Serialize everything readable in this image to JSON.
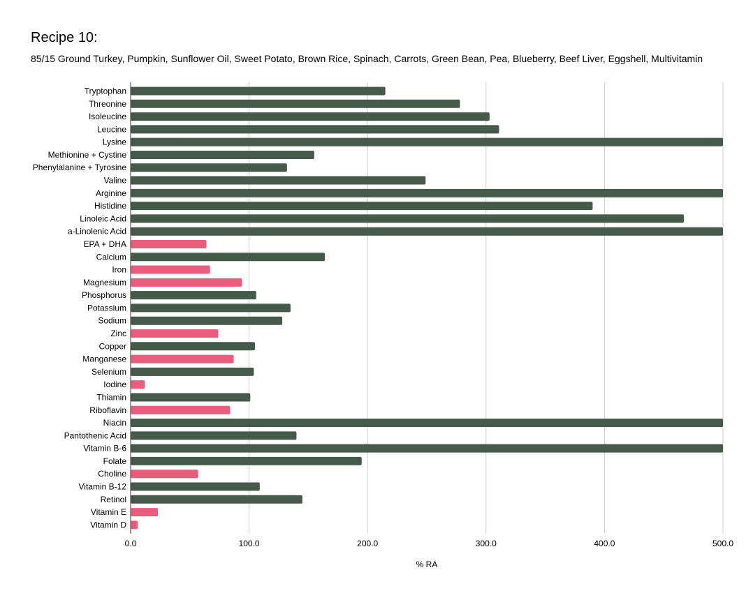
{
  "chart_data": {
    "type": "bar",
    "orientation": "horizontal",
    "title": "Recipe 10:",
    "subtitle": "85/15 Ground Turkey, Pumpkin, Sunflower Oil, Sweet Potato, Brown Rice, Spinach, Carrots, Green Bean, Pea, Blueberry, Beef Liver, Eggshell, Multivitamin",
    "xlabel": "% RA",
    "ylabel": "",
    "xlim": [
      0,
      500
    ],
    "xticks": [
      0,
      100,
      200,
      300,
      400,
      500
    ],
    "xtick_labels": [
      "0.0",
      "100.0",
      "200.0",
      "300.0",
      "400.0",
      "500.0"
    ],
    "grid": "vertical",
    "legend": "none",
    "colors": {
      "above_100": "#455a48",
      "below_100": "#e85c7c",
      "grid": "#cccccc",
      "axis": "#333333"
    },
    "categories": [
      "Tryptophan",
      "Threonine",
      "Isoleucine",
      "Leucine",
      "Lysine",
      "Methionine + Cystine",
      "Phenylalanine + Tyrosine",
      "Valine",
      "Arginine",
      "Histidine",
      "Linoleic Acid",
      "a-Linolenic Acid",
      "EPA + DHA",
      "Calcium",
      "Iron",
      "Magnesium",
      "Phosphorus",
      "Potassium",
      "Sodium",
      "Zinc",
      "Copper",
      "Manganese",
      "Selenium",
      "Iodine",
      "Thiamin",
      "Riboflavin",
      "Niacin",
      "Pantothenic Acid",
      "Vitamin B-6",
      "Folate",
      "Choline",
      "Vitamin B-12",
      "Retinol",
      "Vitamin E",
      "Vitamin D"
    ],
    "values": [
      215,
      278,
      303,
      311,
      500,
      155,
      132,
      249,
      500,
      390,
      467,
      500,
      64,
      164,
      67,
      94,
      106,
      135,
      128,
      74,
      105,
      87,
      104,
      12,
      101,
      84,
      500,
      140,
      500,
      195,
      57,
      109,
      145,
      23,
      6
    ]
  }
}
